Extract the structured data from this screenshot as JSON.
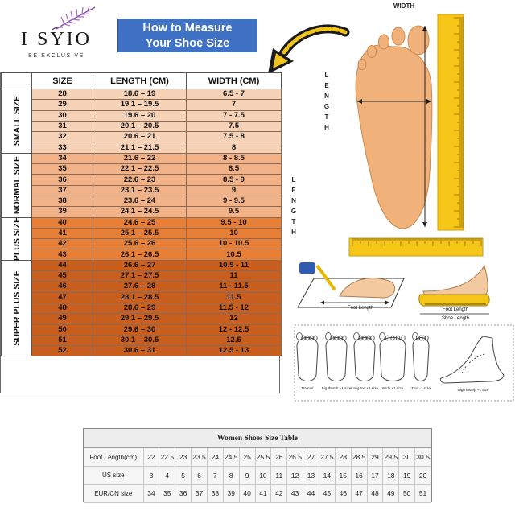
{
  "brand": {
    "name": "I SYIO",
    "tagline": "BE EXCLUSIVE"
  },
  "title": {
    "line1": "How to Measure",
    "line2": "Your Shoe Size"
  },
  "size_table": {
    "headers": [
      "SIZE",
      "LENGTH (CM)",
      "WIDTH (CM)"
    ],
    "groups": [
      {
        "label": "SMALL SIZE",
        "rows": [
          [
            "28",
            "18.6 – 19",
            "6.5 - 7"
          ],
          [
            "29",
            "19.1 – 19.5",
            "7"
          ],
          [
            "30",
            "19.6 – 20",
            "7 - 7.5"
          ],
          [
            "31",
            "20.1 – 20.5",
            "7.5"
          ],
          [
            "32",
            "20.6 – 21",
            "7.5 - 8"
          ],
          [
            "33",
            "21.1 – 21.5",
            "8"
          ]
        ]
      },
      {
        "label": "NORMAL SIZE",
        "rows": [
          [
            "34",
            "21.6 – 22",
            "8 - 8.5"
          ],
          [
            "35",
            "22.1 – 22.5",
            "8.5"
          ],
          [
            "36",
            "22.6 – 23",
            "8.5 - 9"
          ],
          [
            "37",
            "23.1 – 23.5",
            "9"
          ],
          [
            "38",
            "23.6 – 24",
            "9 - 9.5"
          ],
          [
            "39",
            "24.1 – 24.5",
            "9.5"
          ]
        ]
      },
      {
        "label": "PLUS SIZE",
        "rows": [
          [
            "40",
            "24.6 – 25",
            "9.5 - 10"
          ],
          [
            "41",
            "25.1 – 25.5",
            "10"
          ],
          [
            "42",
            "25.6 – 26",
            "10 - 10.5"
          ],
          [
            "43",
            "26.1 – 26.5",
            "10.5"
          ]
        ]
      },
      {
        "label": "SUPER PLUS SIZE",
        "rows": [
          [
            "44",
            "26.6 – 27",
            "10.5 - 11"
          ],
          [
            "45",
            "27.1 – 27.5",
            "11"
          ],
          [
            "46",
            "27.6 – 28",
            "11 - 11.5"
          ],
          [
            "47",
            "28.1 – 28.5",
            "11.5"
          ],
          [
            "48",
            "28.6 – 29",
            "11.5 - 12"
          ],
          [
            "49",
            "29.1 – 29.5",
            "12"
          ],
          [
            "50",
            "29.6 – 30",
            "12 - 12.5"
          ],
          [
            "51",
            "30.1 – 30.5",
            "12.5"
          ],
          [
            "52",
            "30.6 – 31",
            "12.5 - 13"
          ]
        ]
      }
    ]
  },
  "diagram": {
    "width_label": "WIDTH",
    "length_label_1": "L E N G T H",
    "length_label_2": "L E N G T H",
    "foot_length": "Foot Length",
    "shoe_foot_length": "Foot Length",
    "shoe_length": "Shoe Length",
    "foot_types": [
      "Normal",
      "Big thumb +1 size",
      "Long toe +1 size",
      "Wide +1 size",
      "Thin -1 size",
      "High instep +1 size"
    ]
  },
  "bottom_table": {
    "title": "Women Shoes Size Table",
    "rows": [
      {
        "label": "Foot Length(cm)",
        "values": [
          "22",
          "22.5",
          "23",
          "23.5",
          "24",
          "24.5",
          "25",
          "25.5",
          "26",
          "26.5",
          "27",
          "27.5",
          "28",
          "28.5",
          "29",
          "29.5",
          "30",
          "30.5"
        ]
      },
      {
        "label": "US size",
        "values": [
          "3",
          "4",
          "5",
          "6",
          "7",
          "8",
          "9",
          "10",
          "11",
          "12",
          "13",
          "14",
          "15",
          "16",
          "17",
          "18",
          "19",
          "20"
        ]
      },
      {
        "label": "EUR/CN size",
        "values": [
          "34",
          "35",
          "36",
          "37",
          "38",
          "39",
          "40",
          "41",
          "42",
          "43",
          "44",
          "45",
          "46",
          "47",
          "48",
          "49",
          "50",
          "51"
        ]
      }
    ]
  },
  "colors": {
    "small": "#f6d2b6",
    "normal": "#f2b287",
    "plus": "#e87f36",
    "super": "#c95f1e",
    "title_bg": "#3f72c4",
    "ruler": "#f5c518",
    "foot": "#f0b27a"
  }
}
